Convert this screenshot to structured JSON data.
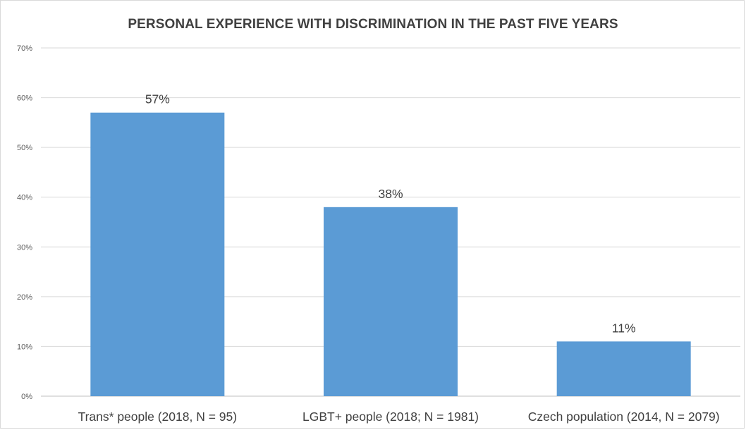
{
  "chart_data": {
    "type": "bar",
    "title": "PERSONAL EXPERIENCE WITH DISCRIMINATION IN THE PAST FIVE YEARS",
    "categories": [
      "Trans* people (2018, N = 95)",
      "LGBT+ people (2018; N = 1981)",
      "Czech population (2014, N = 2079)"
    ],
    "values": [
      57,
      38,
      11
    ],
    "data_labels": [
      "57%",
      "38%",
      "11%"
    ],
    "ylim": [
      0,
      70
    ],
    "y_ticks": [
      "0%",
      "10%",
      "20%",
      "30%",
      "40%",
      "50%",
      "60%",
      "70%"
    ],
    "xlabel": "",
    "ylabel": "",
    "grid": true,
    "legend": "none",
    "bar_color": "#5b9bd5",
    "grid_color": "#d9d9d9"
  }
}
